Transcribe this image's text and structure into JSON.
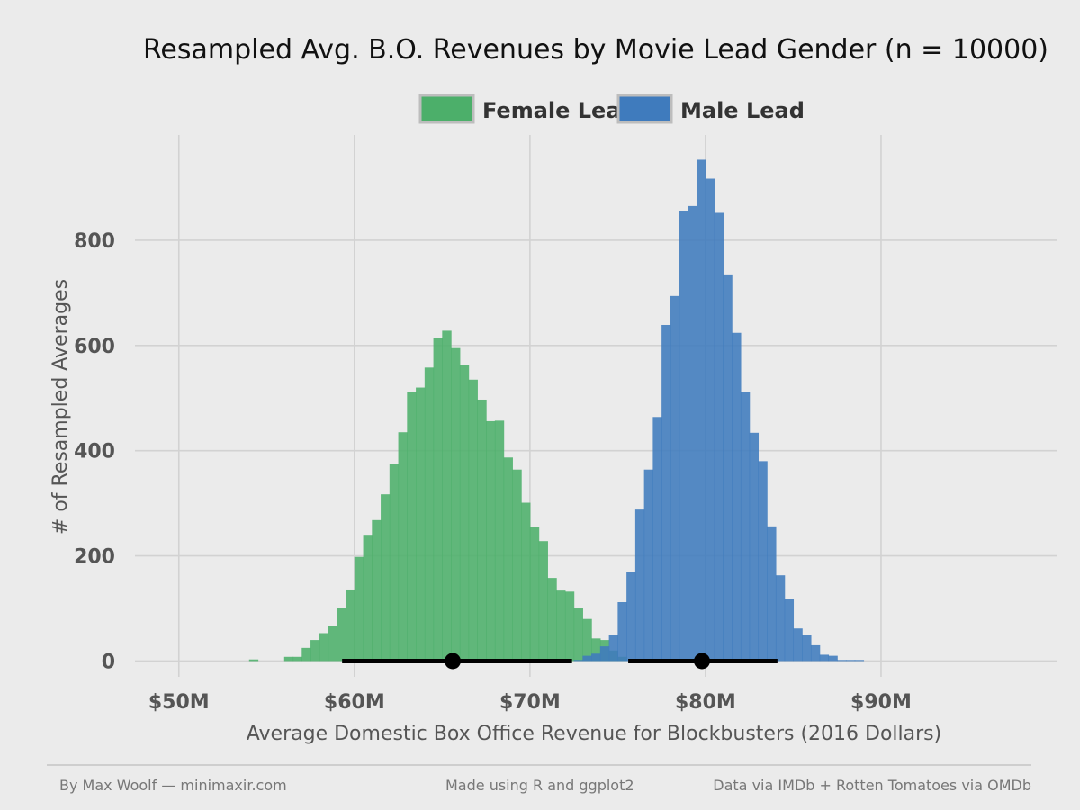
{
  "chart_data": {
    "type": "bar",
    "title": "Resampled Avg. B.O. Revenues by Movie Lead Gender (n = 10000)",
    "xlabel": "Average Domestic Box Office Revenue for Blockbusters (2016 Dollars)",
    "ylabel": "# of Resampled Averages",
    "xlim": [
      47.5,
      100
    ],
    "ylim": [
      -30,
      1000
    ],
    "x_ticks": [
      {
        "value": 50,
        "label": "$50M"
      },
      {
        "value": 60,
        "label": "$60M"
      },
      {
        "value": 70,
        "label": "$70M"
      },
      {
        "value": 80,
        "label": "$80M"
      },
      {
        "value": 90,
        "label": "$90M"
      }
    ],
    "y_ticks": [
      {
        "value": 0,
        "label": "0"
      },
      {
        "value": 200,
        "label": "200"
      },
      {
        "value": 400,
        "label": "400"
      },
      {
        "value": 600,
        "label": "600"
      },
      {
        "value": 800,
        "label": "800"
      }
    ],
    "bin_width": 0.5,
    "grid": true,
    "legend_position": "top",
    "series": [
      {
        "name": "Female Lead",
        "color": "#4caf6a",
        "bins_x": [
          53.75,
          54.25,
          54.75,
          55.25,
          55.75,
          56.25,
          56.75,
          57.25,
          57.75,
          58.25,
          58.75,
          59.25,
          59.75,
          60.25,
          60.75,
          61.25,
          61.75,
          62.25,
          62.75,
          63.25,
          63.75,
          64.25,
          64.75,
          65.25,
          65.75,
          66.25,
          66.75,
          67.25,
          67.75,
          68.25,
          68.75,
          69.25,
          69.75,
          70.25,
          70.75,
          71.25,
          71.75,
          72.25,
          72.75,
          73.25,
          73.75,
          74.25,
          74.75,
          75.25
        ],
        "counts": [
          0,
          3,
          0,
          0,
          0,
          8,
          8,
          25,
          40,
          53,
          66,
          100,
          136,
          198,
          240,
          268,
          317,
          374,
          435,
          512,
          520,
          558,
          614,
          628,
          595,
          563,
          535,
          497,
          456,
          457,
          387,
          364,
          301,
          254,
          228,
          158,
          134,
          132,
          100,
          80,
          43,
          40,
          20,
          8
        ]
      },
      {
        "name": "Male Lead",
        "color": "#3f7bbd",
        "bins_x": [
          72.75,
          73.25,
          73.75,
          74.25,
          74.75,
          75.25,
          75.75,
          76.25,
          76.75,
          77.25,
          77.75,
          78.25,
          78.75,
          79.25,
          79.75,
          80.25,
          80.75,
          81.25,
          81.75,
          82.25,
          82.75,
          83.25,
          83.75,
          84.25,
          84.75,
          85.25,
          85.75,
          86.25,
          86.75,
          87.25,
          87.75,
          88.25,
          88.75
        ],
        "counts": [
          2,
          10,
          14,
          28,
          50,
          112,
          170,
          288,
          364,
          464,
          639,
          694,
          856,
          865,
          953,
          917,
          852,
          735,
          624,
          511,
          434,
          380,
          256,
          163,
          118,
          62,
          50,
          30,
          12,
          10,
          2,
          2,
          2
        ]
      }
    ],
    "intervals": [
      {
        "series": "Female Lead",
        "low": 59.3,
        "mean": 65.6,
        "high": 72.4
      },
      {
        "series": "Male Lead",
        "low": 75.6,
        "mean": 79.8,
        "high": 84.1
      }
    ]
  },
  "footer": {
    "author": "By Max Woolf — minimaxir.com",
    "tool": "Made using R and ggplot2",
    "source": "Data via IMDb + Rotten Tomatoes via OMDb"
  }
}
